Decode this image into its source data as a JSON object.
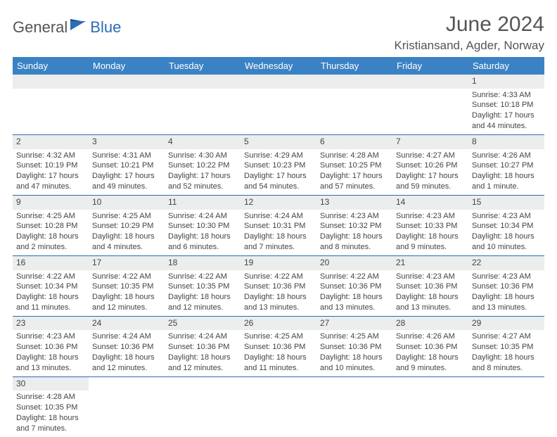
{
  "logo": {
    "general": "General",
    "blue": "Blue"
  },
  "header": {
    "month_year": "June 2024",
    "location": "Kristiansand, Agder, Norway"
  },
  "colors": {
    "header_bg": "#3b82c4",
    "header_text": "#ffffff",
    "daynum_bg": "#eceded",
    "cell_border": "#2a6db8",
    "text": "#444444",
    "logo_general": "#555555",
    "logo_blue": "#2a6db8"
  },
  "day_headers": [
    "Sunday",
    "Monday",
    "Tuesday",
    "Wednesday",
    "Thursday",
    "Friday",
    "Saturday"
  ],
  "weeks": [
    [
      {
        "n": "",
        "sunrise": "",
        "sunset": "",
        "daylight": ""
      },
      {
        "n": "",
        "sunrise": "",
        "sunset": "",
        "daylight": ""
      },
      {
        "n": "",
        "sunrise": "",
        "sunset": "",
        "daylight": ""
      },
      {
        "n": "",
        "sunrise": "",
        "sunset": "",
        "daylight": ""
      },
      {
        "n": "",
        "sunrise": "",
        "sunset": "",
        "daylight": ""
      },
      {
        "n": "",
        "sunrise": "",
        "sunset": "",
        "daylight": ""
      },
      {
        "n": "1",
        "sunrise": "Sunrise: 4:33 AM",
        "sunset": "Sunset: 10:18 PM",
        "daylight": "Daylight: 17 hours and 44 minutes."
      }
    ],
    [
      {
        "n": "2",
        "sunrise": "Sunrise: 4:32 AM",
        "sunset": "Sunset: 10:19 PM",
        "daylight": "Daylight: 17 hours and 47 minutes."
      },
      {
        "n": "3",
        "sunrise": "Sunrise: 4:31 AM",
        "sunset": "Sunset: 10:21 PM",
        "daylight": "Daylight: 17 hours and 49 minutes."
      },
      {
        "n": "4",
        "sunrise": "Sunrise: 4:30 AM",
        "sunset": "Sunset: 10:22 PM",
        "daylight": "Daylight: 17 hours and 52 minutes."
      },
      {
        "n": "5",
        "sunrise": "Sunrise: 4:29 AM",
        "sunset": "Sunset: 10:23 PM",
        "daylight": "Daylight: 17 hours and 54 minutes."
      },
      {
        "n": "6",
        "sunrise": "Sunrise: 4:28 AM",
        "sunset": "Sunset: 10:25 PM",
        "daylight": "Daylight: 17 hours and 57 minutes."
      },
      {
        "n": "7",
        "sunrise": "Sunrise: 4:27 AM",
        "sunset": "Sunset: 10:26 PM",
        "daylight": "Daylight: 17 hours and 59 minutes."
      },
      {
        "n": "8",
        "sunrise": "Sunrise: 4:26 AM",
        "sunset": "Sunset: 10:27 PM",
        "daylight": "Daylight: 18 hours and 1 minute."
      }
    ],
    [
      {
        "n": "9",
        "sunrise": "Sunrise: 4:25 AM",
        "sunset": "Sunset: 10:28 PM",
        "daylight": "Daylight: 18 hours and 2 minutes."
      },
      {
        "n": "10",
        "sunrise": "Sunrise: 4:25 AM",
        "sunset": "Sunset: 10:29 PM",
        "daylight": "Daylight: 18 hours and 4 minutes."
      },
      {
        "n": "11",
        "sunrise": "Sunrise: 4:24 AM",
        "sunset": "Sunset: 10:30 PM",
        "daylight": "Daylight: 18 hours and 6 minutes."
      },
      {
        "n": "12",
        "sunrise": "Sunrise: 4:24 AM",
        "sunset": "Sunset: 10:31 PM",
        "daylight": "Daylight: 18 hours and 7 minutes."
      },
      {
        "n": "13",
        "sunrise": "Sunrise: 4:23 AM",
        "sunset": "Sunset: 10:32 PM",
        "daylight": "Daylight: 18 hours and 8 minutes."
      },
      {
        "n": "14",
        "sunrise": "Sunrise: 4:23 AM",
        "sunset": "Sunset: 10:33 PM",
        "daylight": "Daylight: 18 hours and 9 minutes."
      },
      {
        "n": "15",
        "sunrise": "Sunrise: 4:23 AM",
        "sunset": "Sunset: 10:34 PM",
        "daylight": "Daylight: 18 hours and 10 minutes."
      }
    ],
    [
      {
        "n": "16",
        "sunrise": "Sunrise: 4:22 AM",
        "sunset": "Sunset: 10:34 PM",
        "daylight": "Daylight: 18 hours and 11 minutes."
      },
      {
        "n": "17",
        "sunrise": "Sunrise: 4:22 AM",
        "sunset": "Sunset: 10:35 PM",
        "daylight": "Daylight: 18 hours and 12 minutes."
      },
      {
        "n": "18",
        "sunrise": "Sunrise: 4:22 AM",
        "sunset": "Sunset: 10:35 PM",
        "daylight": "Daylight: 18 hours and 12 minutes."
      },
      {
        "n": "19",
        "sunrise": "Sunrise: 4:22 AM",
        "sunset": "Sunset: 10:36 PM",
        "daylight": "Daylight: 18 hours and 13 minutes."
      },
      {
        "n": "20",
        "sunrise": "Sunrise: 4:22 AM",
        "sunset": "Sunset: 10:36 PM",
        "daylight": "Daylight: 18 hours and 13 minutes."
      },
      {
        "n": "21",
        "sunrise": "Sunrise: 4:23 AM",
        "sunset": "Sunset: 10:36 PM",
        "daylight": "Daylight: 18 hours and 13 minutes."
      },
      {
        "n": "22",
        "sunrise": "Sunrise: 4:23 AM",
        "sunset": "Sunset: 10:36 PM",
        "daylight": "Daylight: 18 hours and 13 minutes."
      }
    ],
    [
      {
        "n": "23",
        "sunrise": "Sunrise: 4:23 AM",
        "sunset": "Sunset: 10:36 PM",
        "daylight": "Daylight: 18 hours and 13 minutes."
      },
      {
        "n": "24",
        "sunrise": "Sunrise: 4:24 AM",
        "sunset": "Sunset: 10:36 PM",
        "daylight": "Daylight: 18 hours and 12 minutes."
      },
      {
        "n": "25",
        "sunrise": "Sunrise: 4:24 AM",
        "sunset": "Sunset: 10:36 PM",
        "daylight": "Daylight: 18 hours and 12 minutes."
      },
      {
        "n": "26",
        "sunrise": "Sunrise: 4:25 AM",
        "sunset": "Sunset: 10:36 PM",
        "daylight": "Daylight: 18 hours and 11 minutes."
      },
      {
        "n": "27",
        "sunrise": "Sunrise: 4:25 AM",
        "sunset": "Sunset: 10:36 PM",
        "daylight": "Daylight: 18 hours and 10 minutes."
      },
      {
        "n": "28",
        "sunrise": "Sunrise: 4:26 AM",
        "sunset": "Sunset: 10:36 PM",
        "daylight": "Daylight: 18 hours and 9 minutes."
      },
      {
        "n": "29",
        "sunrise": "Sunrise: 4:27 AM",
        "sunset": "Sunset: 10:35 PM",
        "daylight": "Daylight: 18 hours and 8 minutes."
      }
    ],
    [
      {
        "n": "30",
        "sunrise": "Sunrise: 4:28 AM",
        "sunset": "Sunset: 10:35 PM",
        "daylight": "Daylight: 18 hours and 7 minutes."
      },
      {
        "n": "",
        "sunrise": "",
        "sunset": "",
        "daylight": ""
      },
      {
        "n": "",
        "sunrise": "",
        "sunset": "",
        "daylight": ""
      },
      {
        "n": "",
        "sunrise": "",
        "sunset": "",
        "daylight": ""
      },
      {
        "n": "",
        "sunrise": "",
        "sunset": "",
        "daylight": ""
      },
      {
        "n": "",
        "sunrise": "",
        "sunset": "",
        "daylight": ""
      },
      {
        "n": "",
        "sunrise": "",
        "sunset": "",
        "daylight": ""
      }
    ]
  ]
}
